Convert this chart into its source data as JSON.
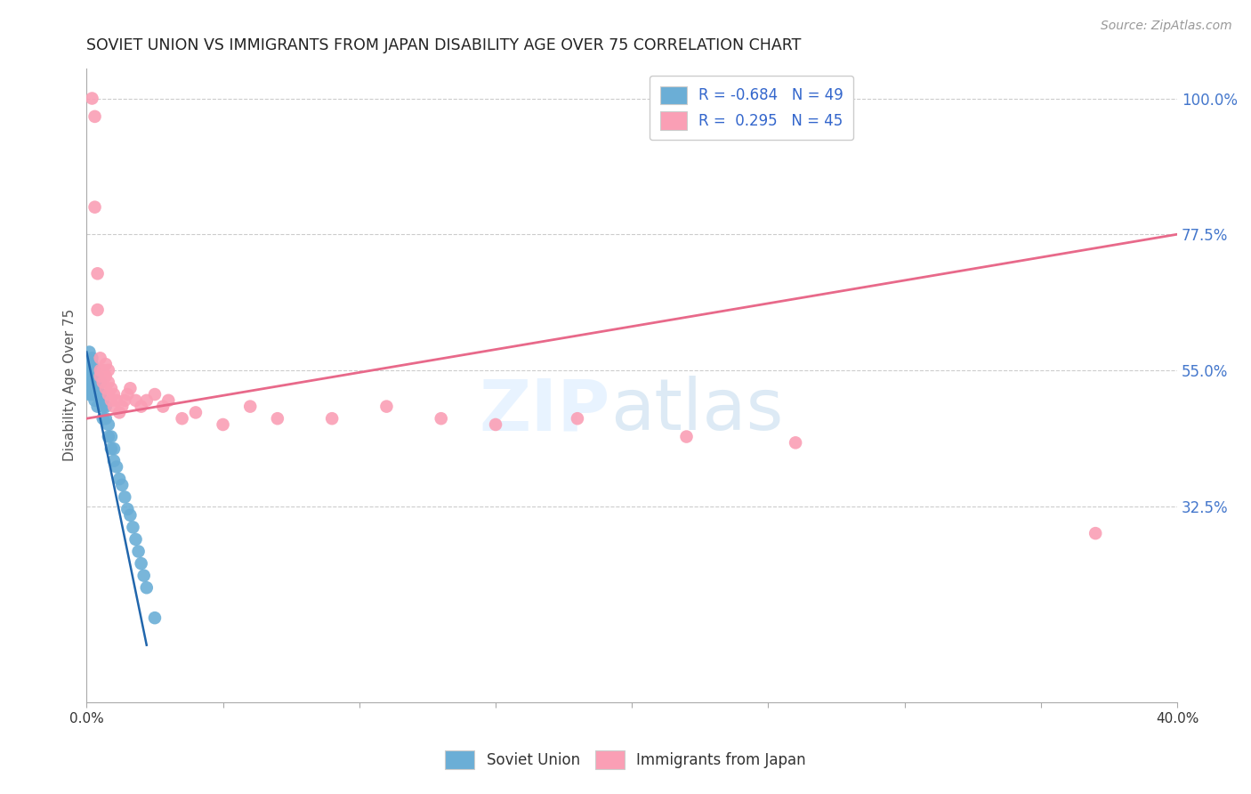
{
  "title": "SOVIET UNION VS IMMIGRANTS FROM JAPAN DISABILITY AGE OVER 75 CORRELATION CHART",
  "source": "Source: ZipAtlas.com",
  "ylabel": "Disability Age Over 75",
  "xlim": [
    0.0,
    0.4
  ],
  "ylim": [
    0.0,
    1.05
  ],
  "yticks_right": [
    1.0,
    0.775,
    0.55,
    0.325
  ],
  "ytick_labels_right": [
    "100.0%",
    "77.5%",
    "55.0%",
    "32.5%"
  ],
  "xticks": [
    0.0,
    0.05,
    0.1,
    0.15,
    0.2,
    0.25,
    0.3,
    0.35,
    0.4
  ],
  "xtick_labels": [
    "0.0%",
    "",
    "",
    "",
    "",
    "",
    "",
    "",
    "40.0%"
  ],
  "legend_r1": "R = -0.684",
  "legend_n1": "N = 49",
  "legend_r2": "R =  0.295",
  "legend_n2": "N = 45",
  "color_blue": "#6baed6",
  "color_pink": "#fa9fb5",
  "color_blue_line": "#2166ac",
  "color_pink_line": "#e8698a",
  "blue_x": [
    0.001,
    0.001,
    0.001,
    0.001,
    0.001,
    0.002,
    0.002,
    0.002,
    0.002,
    0.002,
    0.002,
    0.002,
    0.003,
    0.003,
    0.003,
    0.003,
    0.003,
    0.003,
    0.004,
    0.004,
    0.004,
    0.004,
    0.005,
    0.005,
    0.005,
    0.006,
    0.006,
    0.006,
    0.007,
    0.007,
    0.008,
    0.008,
    0.009,
    0.009,
    0.01,
    0.01,
    0.011,
    0.012,
    0.013,
    0.014,
    0.015,
    0.016,
    0.017,
    0.018,
    0.019,
    0.02,
    0.021,
    0.022,
    0.025
  ],
  "blue_y": [
    0.58,
    0.56,
    0.55,
    0.53,
    0.51,
    0.57,
    0.56,
    0.55,
    0.54,
    0.53,
    0.52,
    0.51,
    0.55,
    0.54,
    0.53,
    0.52,
    0.51,
    0.5,
    0.54,
    0.52,
    0.51,
    0.49,
    0.53,
    0.51,
    0.5,
    0.5,
    0.49,
    0.47,
    0.49,
    0.47,
    0.46,
    0.44,
    0.44,
    0.42,
    0.42,
    0.4,
    0.39,
    0.37,
    0.36,
    0.34,
    0.32,
    0.31,
    0.29,
    0.27,
    0.25,
    0.23,
    0.21,
    0.19,
    0.14
  ],
  "pink_x": [
    0.002,
    0.003,
    0.003,
    0.004,
    0.004,
    0.005,
    0.005,
    0.005,
    0.006,
    0.006,
    0.007,
    0.007,
    0.007,
    0.008,
    0.008,
    0.008,
    0.009,
    0.009,
    0.01,
    0.01,
    0.011,
    0.012,
    0.013,
    0.014,
    0.015,
    0.016,
    0.018,
    0.02,
    0.022,
    0.025,
    0.028,
    0.03,
    0.035,
    0.04,
    0.05,
    0.06,
    0.07,
    0.09,
    0.11,
    0.13,
    0.15,
    0.18,
    0.22,
    0.26,
    0.37
  ],
  "pink_y": [
    1.0,
    0.97,
    0.82,
    0.71,
    0.65,
    0.57,
    0.55,
    0.54,
    0.55,
    0.53,
    0.56,
    0.54,
    0.52,
    0.55,
    0.53,
    0.51,
    0.52,
    0.5,
    0.51,
    0.49,
    0.5,
    0.48,
    0.49,
    0.5,
    0.51,
    0.52,
    0.5,
    0.49,
    0.5,
    0.51,
    0.49,
    0.5,
    0.47,
    0.48,
    0.46,
    0.49,
    0.47,
    0.47,
    0.49,
    0.47,
    0.46,
    0.47,
    0.44,
    0.43,
    0.28
  ],
  "pink_line_x0": 0.0,
  "pink_line_y0": 0.47,
  "pink_line_x1": 0.4,
  "pink_line_y1": 0.775,
  "blue_line_x0": 0.0,
  "blue_line_y0": 0.58,
  "blue_line_x1": 0.022,
  "blue_line_y1": 0.095
}
